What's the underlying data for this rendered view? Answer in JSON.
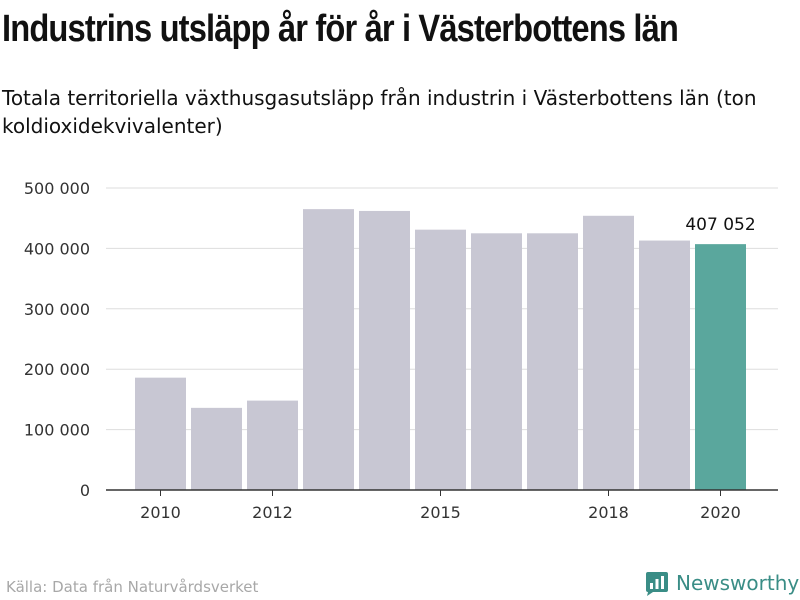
{
  "title": "Industrins utsläpp år för år i Västerbottens län",
  "subtitle": "Totala territoriella växthusgasutsläpp från industrin i Västerbottens län (ton koldioxidekvivalenter)",
  "source": "Källa: Data från Naturvårdsverket",
  "brand": {
    "name": "Newsworthy",
    "icon": "newsworthy-logo-icon",
    "color": "#3a8d86"
  },
  "colors": {
    "bar": "#c8c7d3",
    "highlight": "#5aa79d",
    "grid": "#dddddd",
    "axis": "#333333"
  },
  "chart_data": {
    "type": "bar",
    "title": "Industrins utsläpp år för år i Västerbottens län",
    "subtitle": "Totala territoriella växthusgasutsläpp från industrin i Västerbottens län (ton koldioxidekvivalenter)",
    "xlabel": "",
    "ylabel": "",
    "categories": [
      "2010",
      "2011",
      "2012",
      "2013",
      "2014",
      "2015",
      "2016",
      "2017",
      "2018",
      "2019",
      "2020"
    ],
    "values": [
      186000,
      136000,
      148000,
      465000,
      462000,
      431000,
      425000,
      425000,
      454000,
      413000,
      407052
    ],
    "ylim": [
      0,
      500000
    ],
    "yticks": [
      0,
      100000,
      200000,
      300000,
      400000,
      500000
    ],
    "ytick_labels": [
      "0",
      "100 000",
      "200 000",
      "300 000",
      "400 000",
      "500 000"
    ],
    "xtick_labels": [
      "2010",
      "2012",
      "2015",
      "2018",
      "2020"
    ],
    "highlight_category": "2020",
    "highlight_label": "407 052",
    "grid": true,
    "legend": "none"
  }
}
